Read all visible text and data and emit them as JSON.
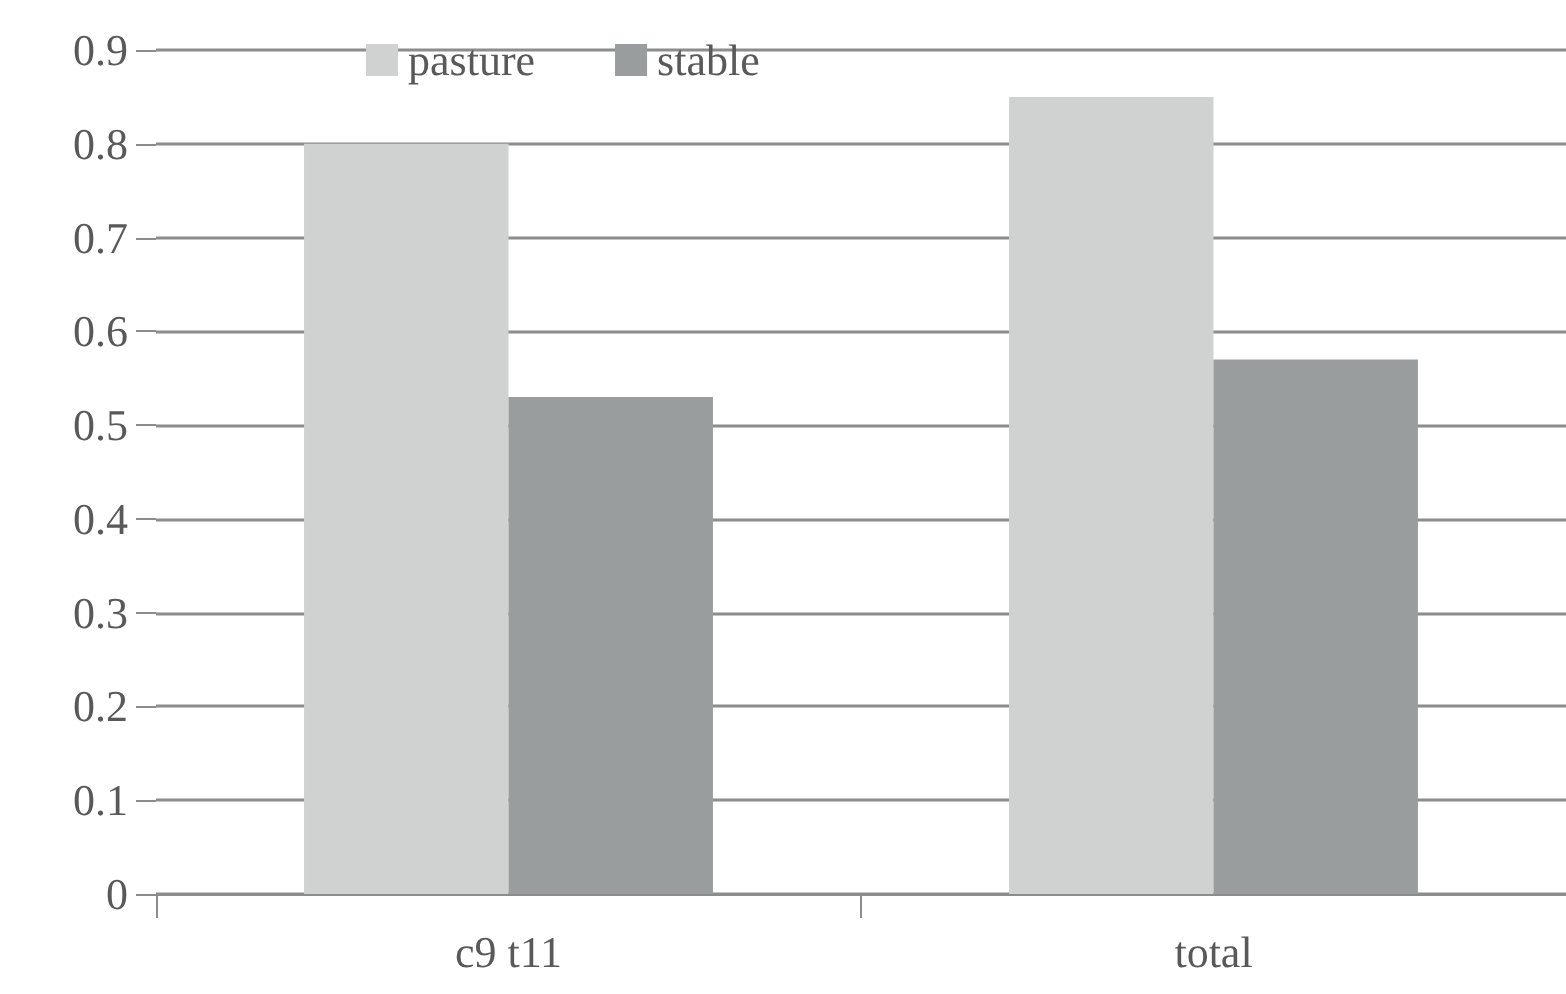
{
  "chart_data": {
    "type": "bar",
    "categories": [
      "c9 t11",
      "total"
    ],
    "series": [
      {
        "name": "pasture",
        "color": "#d0d2d1",
        "values": [
          0.8,
          0.85
        ]
      },
      {
        "name": "stable",
        "color": "#9a9d9e",
        "values": [
          0.53,
          0.57
        ]
      }
    ],
    "ylim": [
      0,
      0.9
    ],
    "yticks": [
      0,
      0.1,
      0.2,
      0.3,
      0.4,
      0.5,
      0.6,
      0.7,
      0.8,
      0.9
    ],
    "grid": "y",
    "legend": "top left"
  }
}
